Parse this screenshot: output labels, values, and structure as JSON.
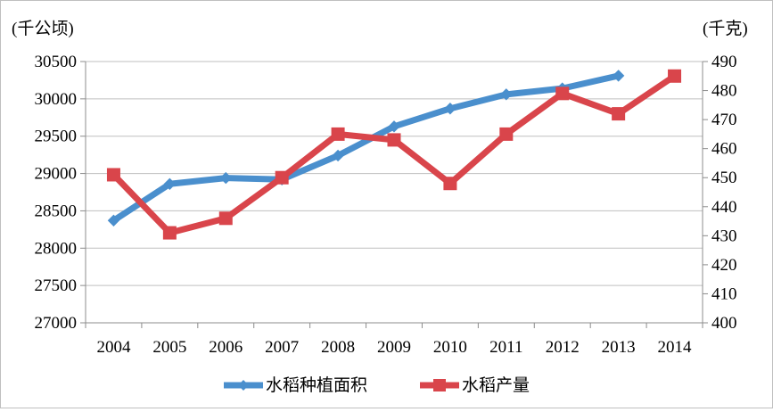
{
  "chart_data": {
    "type": "line",
    "title": "",
    "categories": [
      "2004",
      "2005",
      "2006",
      "2007",
      "2008",
      "2009",
      "2010",
      "2011",
      "2012",
      "2013",
      "2014"
    ],
    "y_left": {
      "unit_label": "(千公顷)",
      "ylim": [
        27000,
        30500
      ],
      "ticks": [
        "27000",
        "27500",
        "28000",
        "28500",
        "29000",
        "29500",
        "30000",
        "30500"
      ]
    },
    "y_right": {
      "unit_label": "(千克)",
      "ylim": [
        400,
        490
      ],
      "ticks": [
        "400",
        "410",
        "420",
        "430",
        "440",
        "450",
        "460",
        "470",
        "480",
        "490"
      ]
    },
    "grid": true,
    "legend_position": "bottom",
    "series": [
      {
        "name": "水稻种植面积",
        "axis": "left",
        "marker": "diamond",
        "color": "#4a8fcd",
        "values": [
          28370,
          28860,
          28940,
          28920,
          29240,
          29630,
          29870,
          30060,
          30140,
          30310,
          null
        ]
      },
      {
        "name": "水稻产量",
        "axis": "right",
        "marker": "square",
        "color": "#d9454b",
        "values": [
          451,
          431,
          436,
          450,
          465,
          463,
          448,
          465,
          479,
          472,
          485
        ]
      }
    ]
  }
}
